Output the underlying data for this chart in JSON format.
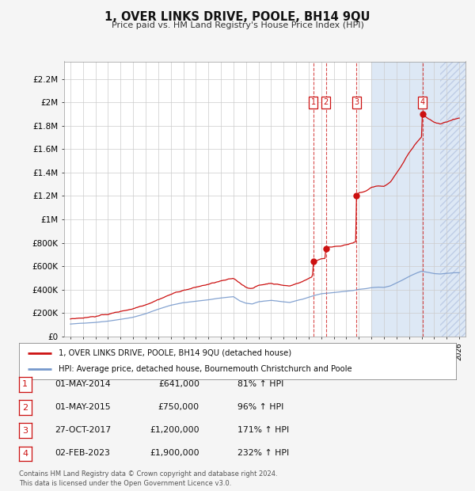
{
  "title": "1, OVER LINKS DRIVE, POOLE, BH14 9QU",
  "subtitle": "Price paid vs. HM Land Registry's House Price Index (HPI)",
  "legend_line1": "1, OVER LINKS DRIVE, POOLE, BH14 9QU (detached house)",
  "legend_line2": "HPI: Average price, detached house, Bournemouth Christchurch and Poole",
  "footnote": "Contains HM Land Registry data © Crown copyright and database right 2024.\nThis data is licensed under the Open Government Licence v3.0.",
  "transactions": [
    {
      "num": 1,
      "date": "01-MAY-2014",
      "year": 2014.37,
      "price": 641000,
      "price_str": "£641,000",
      "pct": "81%"
    },
    {
      "num": 2,
      "date": "01-MAY-2015",
      "year": 2015.37,
      "price": 750000,
      "price_str": "£750,000",
      "pct": "96%"
    },
    {
      "num": 3,
      "date": "27-OCT-2017",
      "year": 2017.82,
      "price": 1200000,
      "price_str": "£1,200,000",
      "pct": "171%"
    },
    {
      "num": 4,
      "date": "02-FEB-2023",
      "year": 2023.09,
      "price": 1900000,
      "price_str": "£1,900,000",
      "pct": "232%"
    }
  ],
  "hpi_color": "#7799cc",
  "price_color": "#cc1111",
  "yticks": [
    0,
    200000,
    400000,
    600000,
    800000,
    1000000,
    1200000,
    1400000,
    1600000,
    1800000,
    2000000,
    2200000
  ],
  "ylabels": [
    "£0",
    "£200K",
    "£400K",
    "£600K",
    "£800K",
    "£1M",
    "£1.2M",
    "£1.4M",
    "£1.6M",
    "£1.8M",
    "£2M",
    "£2.2M"
  ],
  "xmin": 1994.5,
  "xmax": 2026.5,
  "ymin": 0,
  "ymax": 2350000,
  "shade_start": 2019.0,
  "hatch_start": 2024.5,
  "plot_bg": "#ffffff",
  "shade_color": "#dde8f5",
  "hatch_color": "#c8d8ee"
}
